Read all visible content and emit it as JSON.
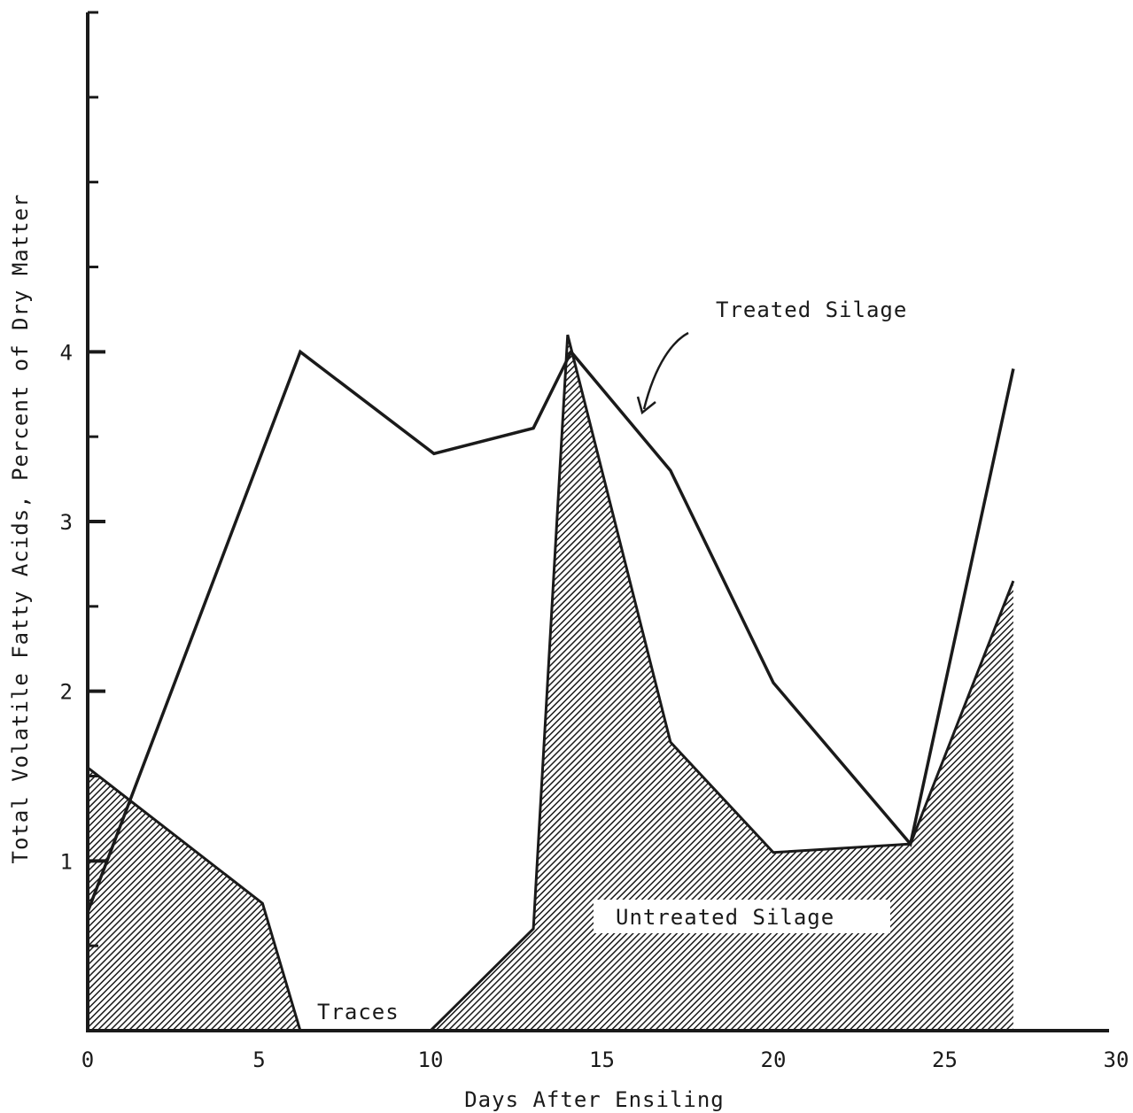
{
  "chart_data": {
    "type": "area",
    "xlabel": "Days After Ensiling",
    "ylabel": "Total Volatile Fatty Acids, Percent of Dry Matter",
    "xlim": [
      0,
      30
    ],
    "ylim": [
      0,
      6
    ],
    "x_ticks": [
      0,
      5,
      10,
      15,
      20,
      25,
      30
    ],
    "y_ticks_labeled": [
      1,
      2,
      3,
      4
    ],
    "y_ticks_minor": [
      0.5,
      1.5,
      2.5,
      3.5,
      4.5,
      5,
      5.5,
      6
    ],
    "grid": false,
    "series": [
      {
        "name": "Treated Silage",
        "style": "line",
        "x": [
          0,
          6.2,
          10.1,
          13,
          14.1,
          17,
          20,
          24,
          27
        ],
        "y": [
          0.7,
          4.0,
          3.4,
          3.55,
          4.0,
          3.3,
          2.05,
          1.1,
          3.9
        ]
      },
      {
        "name": "Untreated Silage",
        "style": "hatched-area",
        "x": [
          0,
          5.1,
          6.2,
          10,
          13,
          14,
          17,
          20,
          24,
          27
        ],
        "y": [
          1.55,
          0.75,
          0,
          0,
          0.6,
          4.1,
          1.7,
          1.05,
          1.1,
          2.65
        ]
      }
    ],
    "annotations": [
      {
        "text": "Treated Silage",
        "x": 18.5,
        "y": 4.2
      },
      {
        "text": "Untreated Silage",
        "x": 17.7,
        "y": 0.65
      },
      {
        "text": "Traces",
        "x": 8,
        "y": 0.1
      }
    ],
    "colors": {
      "ink": "#1a1a1a",
      "background": "#ffffff"
    }
  }
}
